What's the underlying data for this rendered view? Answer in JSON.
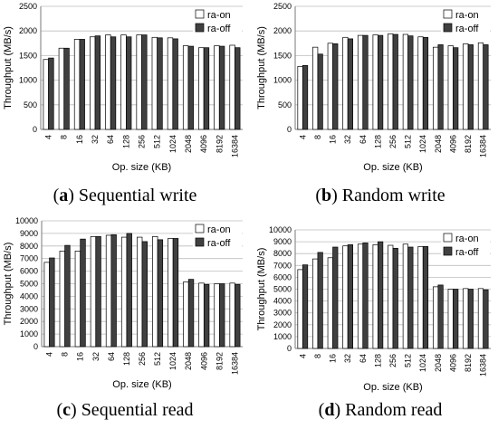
{
  "charts": [
    {
      "id": "a",
      "caption_letter": "a",
      "caption_text": "Sequential write",
      "chart_data": {
        "type": "bar",
        "xlabel": "Op. size (KB)",
        "ylabel": "Throughput (MB/s)",
        "ylim": [
          0,
          2500
        ],
        "yticks": [
          0,
          500,
          1000,
          1500,
          2000,
          2500
        ],
        "grid": true,
        "legend_position": "top-right",
        "categories": [
          "4",
          "8",
          "16",
          "32",
          "64",
          "128",
          "256",
          "512",
          "1024",
          "2048",
          "4096",
          "8192",
          "16384"
        ],
        "series": [
          {
            "name": "ra-on",
            "color": "#ffffff",
            "values": [
              1420,
              1650,
              1830,
              1880,
              1920,
              1920,
              1920,
              1870,
              1860,
              1700,
              1660,
              1700,
              1710
            ]
          },
          {
            "name": "ra-off",
            "color": "#404040",
            "values": [
              1450,
              1650,
              1830,
              1900,
              1880,
              1880,
              1920,
              1860,
              1840,
              1690,
              1660,
              1690,
              1660
            ]
          }
        ]
      }
    },
    {
      "id": "b",
      "caption_letter": "b",
      "caption_text": "Random write",
      "chart_data": {
        "type": "bar",
        "xlabel": "Op. size (KB)",
        "ylabel": "Throughput (MB/s)",
        "ylim": [
          0,
          2500
        ],
        "yticks": [
          0,
          500,
          1000,
          1500,
          2000,
          2500
        ],
        "grid": true,
        "legend_position": "top-right",
        "categories": [
          "4",
          "8",
          "16",
          "32",
          "64",
          "128",
          "256",
          "512",
          "1024",
          "2048",
          "4096",
          "8192",
          "16384"
        ],
        "series": [
          {
            "name": "ra-on",
            "color": "#ffffff",
            "values": [
              1280,
              1670,
              1750,
              1870,
              1910,
              1920,
              1940,
              1930,
              1880,
              1670,
              1700,
              1740,
              1760
            ]
          },
          {
            "name": "ra-off",
            "color": "#404040",
            "values": [
              1300,
              1530,
              1740,
              1840,
              1910,
              1910,
              1930,
              1900,
              1870,
              1720,
              1660,
              1720,
              1720
            ]
          }
        ]
      }
    },
    {
      "id": "c",
      "caption_letter": "c",
      "caption_text": "Sequential read",
      "chart_data": {
        "type": "bar",
        "xlabel": "Op. size (KB)",
        "ylabel": "Throughput (MB/s)",
        "ylim": [
          0,
          10000
        ],
        "yticks": [
          0,
          1000,
          2000,
          3000,
          4000,
          5000,
          6000,
          7000,
          8000,
          9000,
          10000
        ],
        "grid": true,
        "legend_position": "top-right",
        "categories": [
          "4",
          "8",
          "16",
          "32",
          "64",
          "128",
          "256",
          "512",
          "1024",
          "2048",
          "4096",
          "8192",
          "16384"
        ],
        "series": [
          {
            "name": "ra-on",
            "color": "#ffffff",
            "values": [
              6700,
              7600,
              7600,
              8750,
              8850,
              8700,
              8700,
              8750,
              8600,
              5150,
              5050,
              5000,
              5050
            ]
          },
          {
            "name": "ra-off",
            "color": "#404040",
            "values": [
              7050,
              8050,
              8550,
              8750,
              8900,
              9000,
              8350,
              8500,
              8600,
              5350,
              4950,
              5000,
              4950
            ]
          }
        ]
      }
    },
    {
      "id": "d",
      "caption_letter": "d",
      "caption_text": "Random read",
      "chart_data": {
        "type": "bar",
        "xlabel": "Op. size (KB)",
        "ylabel": "Throughput (MB/s)",
        "ylim": [
          0,
          10000
        ],
        "yticks": [
          0,
          1000,
          2000,
          3000,
          4000,
          5000,
          6000,
          7000,
          8000,
          9000,
          10000
        ],
        "grid": true,
        "legend_position": "top-right",
        "categories": [
          "4",
          "8",
          "16",
          "32",
          "64",
          "128",
          "256",
          "512",
          "1024",
          "2048",
          "4096",
          "8192",
          "16384"
        ],
        "series": [
          {
            "name": "ra-on",
            "color": "#ffffff",
            "values": [
              6650,
              7550,
              7650,
              8650,
              8800,
              8750,
              8700,
              8800,
              8600,
              5200,
              5000,
              5050,
              5050
            ]
          },
          {
            "name": "ra-off",
            "color": "#404040",
            "values": [
              7050,
              8100,
              8550,
              8750,
              8900,
              9000,
              8450,
              8550,
              8600,
              5350,
              5000,
              5000,
              4950
            ]
          }
        ]
      }
    }
  ]
}
